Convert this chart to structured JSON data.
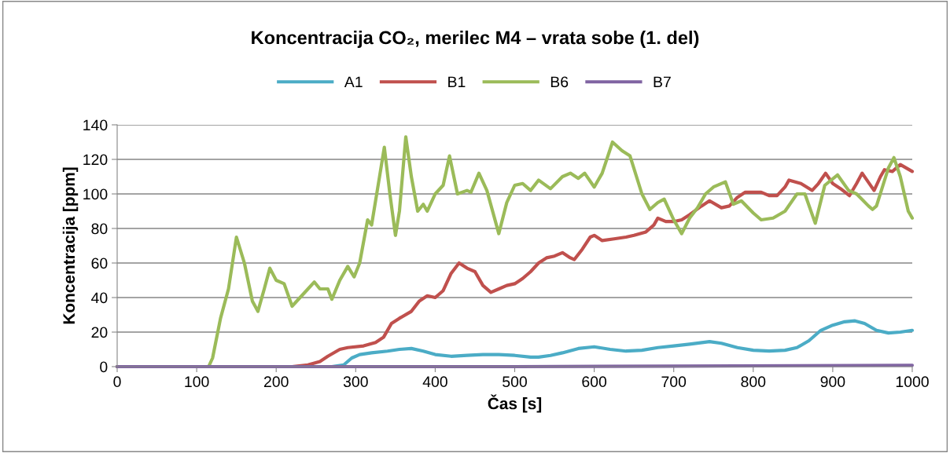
{
  "chart_data": {
    "type": "line",
    "title": "Koncentracija CO₂, merilec M4 – vrata sobe (1. del)",
    "xlabel": "Čas [s]",
    "ylabel": "Koncentracija [ppm]",
    "xlim": [
      0,
      1000
    ],
    "xticks": [
      0,
      100,
      200,
      300,
      400,
      500,
      600,
      700,
      800,
      900,
      1000
    ],
    "ylim": [
      0,
      140
    ],
    "yticks": [
      0,
      20,
      40,
      60,
      80,
      100,
      120,
      140
    ],
    "grid": "y",
    "legend": "top",
    "marker": "none",
    "line_style": "solid",
    "series": [
      {
        "name": "A1",
        "color": "#4bacc6",
        "x": [
          0,
          270,
          285,
          295,
          305,
          320,
          340,
          355,
          370,
          385,
          400,
          420,
          440,
          460,
          480,
          500,
          520,
          530,
          545,
          560,
          580,
          600,
          620,
          640,
          660,
          680,
          700,
          720,
          745,
          760,
          780,
          800,
          820,
          840,
          855,
          870,
          885,
          900,
          915,
          928,
          940,
          955,
          970,
          985,
          1000
        ],
        "values": [
          0,
          0,
          1,
          5,
          7,
          8,
          9,
          10,
          10.5,
          9,
          7,
          6,
          6.5,
          7,
          7,
          6.5,
          5.5,
          5.5,
          6.5,
          8,
          10.5,
          11.5,
          10,
          9,
          9.5,
          11,
          12,
          13,
          14.5,
          13.5,
          11,
          9.5,
          9,
          9.5,
          11,
          15,
          21,
          24,
          26,
          26.5,
          25,
          21,
          19.5,
          20,
          21
        ]
      },
      {
        "name": "B1",
        "color": "#c0504d",
        "x": [
          0,
          220,
          240,
          255,
          265,
          280,
          290,
          310,
          325,
          335,
          345,
          355,
          370,
          380,
          390,
          400,
          410,
          420,
          430,
          440,
          450,
          460,
          470,
          480,
          490,
          500,
          510,
          520,
          530,
          540,
          550,
          560,
          570,
          575,
          585,
          595,
          600,
          610,
          625,
          640,
          650,
          665,
          675,
          680,
          690,
          700,
          710,
          720,
          735,
          745,
          760,
          770,
          780,
          790,
          800,
          810,
          820,
          830,
          840,
          845,
          860,
          874,
          882,
          891,
          900,
          910,
          921,
          930,
          937,
          952,
          960,
          965,
          975,
          985,
          1000
        ],
        "values": [
          0,
          0,
          1,
          3,
          6,
          10,
          11,
          12,
          14,
          17,
          25,
          28,
          32,
          38,
          41,
          40,
          44,
          54,
          60,
          57,
          55,
          47,
          43,
          45,
          47,
          48,
          51,
          55,
          60,
          63,
          64,
          66,
          63,
          62,
          68,
          75,
          76,
          73,
          74,
          75,
          76,
          78,
          82,
          86,
          84,
          84,
          85,
          88,
          93,
          96,
          92,
          93,
          98,
          101,
          101,
          101,
          99,
          99,
          104,
          108,
          106,
          102,
          106,
          112,
          106,
          103,
          99,
          106,
          112,
          102,
          110,
          114,
          113,
          117,
          113
        ]
      },
      {
        "name": "B6",
        "color": "#9bbb59",
        "x": [
          0,
          115,
          120,
          130,
          140,
          150,
          160,
          170,
          177,
          185,
          192,
          200,
          210,
          220,
          230,
          240,
          248,
          255,
          265,
          270,
          280,
          290,
          298,
          305,
          315,
          320,
          330,
          336,
          343,
          350,
          355,
          363,
          370,
          378,
          385,
          390,
          400,
          410,
          418,
          428,
          440,
          445,
          455,
          465,
          480,
          490,
          500,
          510,
          520,
          530,
          545,
          560,
          570,
          580,
          588,
          600,
          610,
          623,
          635,
          645,
          660,
          670,
          680,
          688,
          700,
          710,
          720,
          730,
          740,
          750,
          765,
          775,
          785,
          800,
          810,
          825,
          840,
          855,
          865,
          878,
          890,
          906,
          920,
          930,
          945,
          950,
          955,
          970,
          977,
          985,
          995,
          1000
        ],
        "values": [
          0,
          0,
          5,
          28,
          45,
          75,
          60,
          38,
          32,
          45,
          57,
          50,
          48,
          35,
          40,
          45,
          49,
          45,
          45,
          39,
          50,
          58,
          52,
          60,
          85,
          82,
          110,
          127,
          100,
          76,
          90,
          133,
          110,
          90,
          94,
          90,
          100,
          105,
          122,
          100,
          102,
          101,
          112,
          102,
          77,
          95,
          105,
          106,
          102,
          108,
          103,
          110,
          112,
          109,
          112,
          104,
          112,
          130,
          125,
          122,
          100,
          91,
          95,
          97,
          85,
          77,
          86,
          92,
          100,
          104,
          107,
          94,
          96,
          89,
          85,
          86,
          90,
          100,
          100,
          83,
          105,
          111,
          102,
          100,
          93,
          91,
          93,
          115,
          121,
          110,
          90,
          86
        ]
      },
      {
        "name": "B7",
        "color": "#8064a2",
        "x": [
          0,
          500,
          700,
          1000
        ],
        "values": [
          0,
          0,
          0.3,
          0.8
        ]
      }
    ]
  }
}
